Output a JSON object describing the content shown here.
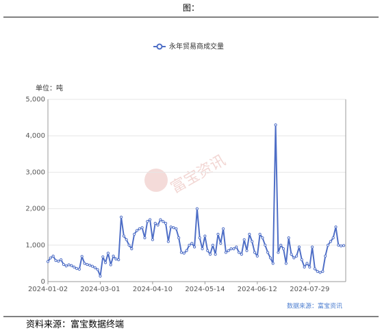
{
  "header": {
    "title": "图：",
    "unit": "单位：吨",
    "watermark": "富宝资讯",
    "source_inner": "数据来源：富宝资讯",
    "footer": "资料来源：富宝数据终端"
  },
  "chart_data": {
    "type": "line",
    "x": [
      "2024-01-02",
      null,
      null,
      null,
      null,
      null,
      null,
      null,
      null,
      null,
      null,
      null,
      null,
      null,
      null,
      null,
      null,
      null,
      null,
      null,
      "2024-03-01",
      null,
      null,
      null,
      null,
      null,
      null,
      null,
      null,
      null,
      null,
      null,
      null,
      null,
      null,
      null,
      null,
      null,
      null,
      null,
      "2024-04-10",
      null,
      null,
      null,
      null,
      null,
      null,
      null,
      null,
      null,
      null,
      null,
      null,
      null,
      null,
      null,
      null,
      null,
      null,
      null,
      "2024-05-14",
      null,
      null,
      null,
      null,
      null,
      null,
      null,
      null,
      null,
      null,
      null,
      null,
      null,
      null,
      null,
      null,
      null,
      null,
      null,
      "2024-06-12",
      null,
      null,
      null,
      null,
      null,
      null,
      null,
      null,
      null,
      null,
      null,
      null,
      null,
      null,
      null,
      null,
      null,
      null,
      null,
      "2024-07-29",
      null,
      null,
      null,
      null,
      null,
      null,
      null,
      null,
      null,
      null,
      null,
      null,
      null
    ],
    "series": [
      {
        "name": "永年贸易商成交量",
        "color": "#4e6ec6",
        "values": [
          550,
          650,
          700,
          580,
          560,
          600,
          470,
          430,
          460,
          440,
          400,
          360,
          340,
          690,
          500,
          470,
          450,
          420,
          380,
          330,
          150,
          680,
          520,
          780,
          460,
          700,
          620,
          600,
          1770,
          1250,
          1150,
          1000,
          900,
          1300,
          1400,
          1450,
          1480,
          1200,
          1650,
          1700,
          1150,
          1600,
          1550,
          1700,
          1650,
          1600,
          1100,
          1500,
          1480,
          1450,
          1200,
          800,
          780,
          850,
          1000,
          1050,
          950,
          2000,
          1200,
          900,
          1250,
          850,
          750,
          1000,
          750,
          1300,
          1050,
          1450,
          800,
          850,
          900,
          900,
          950,
          800,
          750,
          1150,
          850,
          1300,
          1100,
          800,
          700,
          1300,
          1200,
          1000,
          800,
          650,
          500,
          4300,
          800,
          1000,
          900,
          500,
          1200,
          750,
          650,
          700,
          950,
          600,
          400,
          500,
          400,
          950,
          350,
          280,
          250,
          280,
          700,
          1000,
          1100,
          1200,
          1500,
          1000,
          980,
          990
        ]
      }
    ],
    "ylim": [
      0,
      5000
    ],
    "yticks": [
      0,
      {
        "value": 1000,
        "label": "1,000"
      },
      {
        "value": 2000,
        "label": "2,000"
      },
      {
        "value": 3000,
        "label": "3,000"
      },
      {
        "value": 4000,
        "label": "4,000"
      },
      {
        "value": 5000,
        "label": "5,000"
      }
    ],
    "grid": true
  }
}
